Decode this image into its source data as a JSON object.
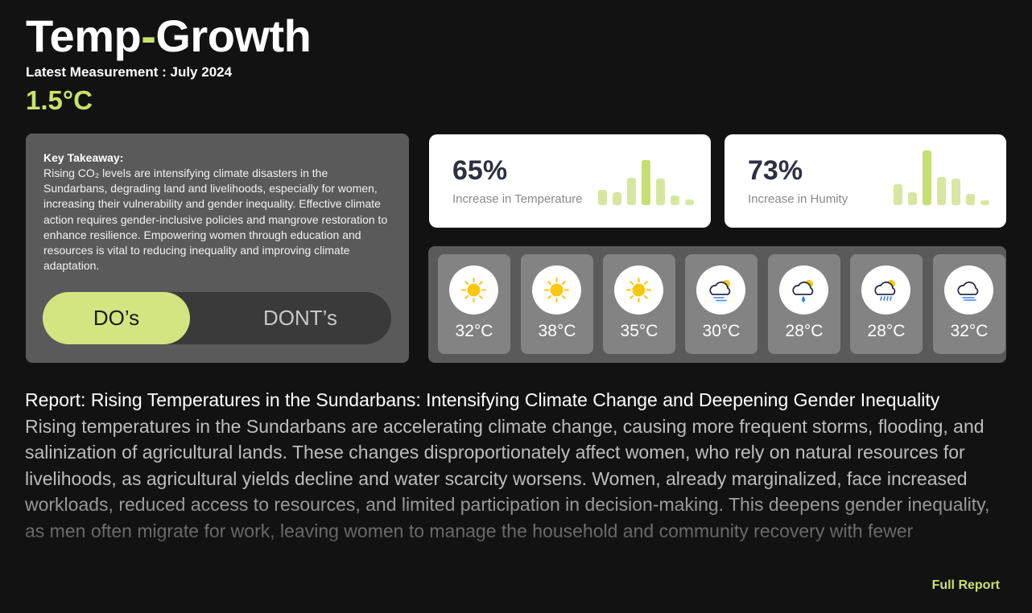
{
  "header": {
    "title_a": "Temp",
    "title_dash": "-",
    "title_b": "Growth",
    "latest_label": "Latest Measurement : July 2024",
    "latest_value": "1.5°C"
  },
  "takeaway": {
    "heading": "Key Takeaway:",
    "text": "Rising CO₂ levels are intensifying climate disasters in the Sundarbans, degrading land and livelihoods, especially for women, increasing their vulnerability and gender inequality. Effective climate action requires gender-inclusive policies and mangrove restoration to enhance resilience. Empowering women through education and resources is vital to reducing inequality and improving climate adaptation.",
    "toggle": {
      "do_label": "DO’s",
      "dont_label": "DONT’s",
      "selected": "DO’s"
    }
  },
  "stats": [
    {
      "value": "65%",
      "label": "Increase in Temperature",
      "bar_levels": [
        0.28,
        0.24,
        0.5,
        0.82,
        0.48,
        0.18,
        0.1
      ]
    },
    {
      "value": "73%",
      "label": "Increase in Humity",
      "bar_levels": [
        0.38,
        0.24,
        1.0,
        0.52,
        0.48,
        0.2,
        0.09
      ]
    }
  ],
  "forecast": [
    {
      "temp": "32°C",
      "icon": "sun-icon"
    },
    {
      "temp": "38°C",
      "icon": "sun-icon"
    },
    {
      "temp": "35°C",
      "icon": "sun-icon"
    },
    {
      "temp": "30°C",
      "icon": "cloud-sun-wind-icon"
    },
    {
      "temp": "28°C",
      "icon": "cloud-sun-drop-icon"
    },
    {
      "temp": "28°C",
      "icon": "cloud-sun-rain-icon"
    },
    {
      "temp": "32°C",
      "icon": "cloud-wind-icon"
    }
  ],
  "report": {
    "title": "Report: Rising Temperatures in the Sundarbans: Intensifying Climate Change and Deepening Gender Inequality",
    "body": "Rising temperatures in the Sundarbans are accelerating climate change, causing more frequent storms, flooding, and salinization of agricultural lands. These changes disproportionately affect women, who rely on natural resources for livelihoods, as agricultural yields decline and water scarcity worsens. Women, already marginalized, face increased workloads, reduced access to resources, and limited participation in decision-making. This deepens gender inequality, as men often migrate for work, leaving women to manage the household and community recovery with fewer opportunities and support.",
    "link_label": "Full Report"
  },
  "colors": {
    "accent": "#c9e26b",
    "background": "#121212",
    "card_dark": "#5a5a5a",
    "card_light": "#ffffff"
  }
}
